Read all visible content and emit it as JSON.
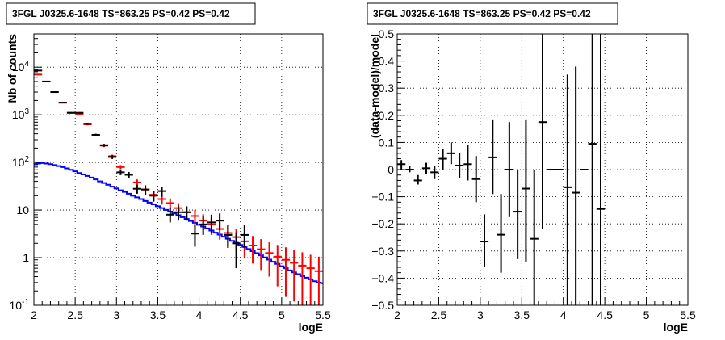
{
  "chart_data": [
    {
      "type": "line",
      "title": "3FGL J0325.6-1648 TS=863.25 PS=0.42 PS=0.42",
      "xlabel": "logE",
      "ylabel": "Nb of counts",
      "xlim": [
        2,
        5.5
      ],
      "ylim": [
        0.1,
        50000
      ],
      "ylog": true,
      "grid": true,
      "x_ticks": [
        "2",
        "2.5",
        "3",
        "3.5",
        "4",
        "4.5",
        "5",
        "5.5"
      ],
      "y_ticks": [
        "10^-1",
        "1",
        "10",
        "10^2",
        "10^3",
        "10^4"
      ],
      "colors": {
        "data": "#000000",
        "total_model": "#ff0000",
        "source_model": "#0000ff"
      },
      "series": [
        {
          "key": "data",
          "x": [
            2.05,
            2.15,
            2.25,
            2.35,
            2.45,
            2.55,
            2.65,
            2.75,
            2.85,
            2.95,
            3.05,
            3.15,
            3.25,
            3.35,
            3.45,
            3.55,
            3.65,
            3.75,
            3.85,
            3.95,
            4.05,
            4.15,
            4.25,
            4.35,
            4.45,
            4.55
          ],
          "y": [
            8500,
            5000,
            3000,
            1800,
            1100,
            1100,
            650,
            380,
            230,
            130,
            62,
            55,
            28,
            27,
            20,
            25,
            8,
            9,
            9,
            3.2,
            5,
            5.5,
            6,
            3,
            2,
            3
          ],
          "ylo": [
            8300,
            4850,
            2900,
            1760,
            1070,
            1060,
            620,
            360,
            215,
            118,
            54,
            47,
            22,
            21,
            15,
            19,
            5.5,
            6,
            6,
            1.7,
            3,
            3.3,
            3.8,
            1.6,
            0.6,
            1.6
          ],
          "yhi": [
            8700,
            5150,
            3100,
            1840,
            1130,
            1140,
            680,
            400,
            245,
            142,
            70,
            63,
            34,
            33,
            25,
            31,
            11,
            12,
            12,
            5,
            7.5,
            8,
            8.5,
            4.8,
            3.4,
            4.8
          ]
        },
        {
          "key": "total_model",
          "x": [
            2.05,
            2.15,
            2.25,
            2.35,
            2.45,
            2.55,
            2.65,
            2.75,
            2.85,
            2.95,
            3.05,
            3.15,
            3.25,
            3.35,
            3.45,
            3.55,
            3.65,
            3.75,
            3.85,
            3.95,
            4.05,
            4.15,
            4.25,
            4.35,
            4.45,
            4.55,
            4.65,
            4.75,
            4.85,
            4.95,
            5.05,
            5.15,
            5.25,
            5.35,
            5.45
          ],
          "y": [
            7000,
            5000,
            3000,
            1800,
            1100,
            1050,
            630,
            370,
            225,
            135,
            80,
            55,
            38,
            27,
            21,
            17,
            14,
            11,
            9,
            7.5,
            6,
            5,
            4,
            3.3,
            2.7,
            2.2,
            1.8,
            1.5,
            1.25,
            1.05,
            0.9,
            0.78,
            0.68,
            0.6,
            0.52
          ],
          "ylo": [
            6800,
            4850,
            2900,
            1750,
            1060,
            1010,
            600,
            350,
            210,
            125,
            72,
            48,
            32,
            22,
            16.5,
            13,
            10.5,
            8,
            6.2,
            5,
            3.8,
            3,
            2.4,
            1.8,
            1.4,
            1,
            0.75,
            0.55,
            0.4,
            0.25,
            0.15,
            0.12,
            0.1,
            0.1,
            0.1
          ],
          "yhi": [
            7200,
            5150,
            3100,
            1850,
            1140,
            1090,
            660,
            390,
            240,
            145,
            88,
            62,
            44,
            32,
            25.5,
            21,
            17.5,
            14,
            11.8,
            10,
            8.2,
            7,
            5.6,
            4.8,
            4,
            3.4,
            2.85,
            2.45,
            2.1,
            1.85,
            1.65,
            1.45,
            1.3,
            1.15,
            1.05
          ]
        },
        {
          "key": "source_model",
          "x": [
            2.0,
            2.05,
            2.1,
            2.15,
            2.2,
            2.25,
            2.3,
            2.35,
            2.4,
            2.45,
            2.5,
            2.55,
            2.6,
            2.65,
            2.7,
            2.75,
            2.8,
            2.85,
            2.9,
            2.95,
            3.0,
            3.05,
            3.1,
            3.15,
            3.2,
            3.25,
            3.3,
            3.35,
            3.4,
            3.45,
            3.5,
            3.55,
            3.6,
            3.65,
            3.7,
            3.75,
            3.8,
            3.85,
            3.9,
            3.95,
            4.0,
            4.05,
            4.1,
            4.15,
            4.2,
            4.25,
            4.3,
            4.35,
            4.4,
            4.45,
            4.5,
            4.55,
            4.6,
            4.65,
            4.7,
            4.75,
            4.8,
            4.85,
            4.9,
            4.95,
            5.0,
            5.05,
            5.1,
            5.15,
            5.2,
            5.25,
            5.3,
            5.35,
            5.4,
            5.45,
            5.5
          ],
          "y": [
            92,
            95,
            97,
            95,
            92,
            88,
            84,
            80,
            75,
            70,
            65,
            60,
            56,
            52,
            48,
            44,
            40,
            37,
            34,
            31,
            28.5,
            26,
            24,
            22,
            20,
            18.5,
            17,
            15.5,
            14.3,
            13.2,
            12,
            11,
            10.1,
            9.3,
            8.5,
            7.8,
            7.1,
            6.5,
            5.9,
            5.4,
            4.9,
            4.5,
            4.1,
            3.7,
            3.35,
            3.05,
            2.75,
            2.5,
            2.25,
            2.05,
            1.85,
            1.68,
            1.52,
            1.37,
            1.24,
            1.12,
            1.01,
            0.91,
            0.82,
            0.74,
            0.66,
            0.6,
            0.54,
            0.49,
            0.45,
            0.41,
            0.38,
            0.35,
            0.32,
            0.3,
            0.29
          ]
        }
      ]
    },
    {
      "type": "scatter",
      "title": "3FGL J0325.6-1648 TS=863.25 PS=0.42 PS=0.42",
      "xlabel": "logE",
      "ylabel": "(data-model)/model",
      "xlim": [
        2,
        5.5
      ],
      "ylim": [
        -0.5,
        0.5
      ],
      "grid": true,
      "x_ticks": [
        "2",
        "2.5",
        "3",
        "3.5",
        "4",
        "4.5",
        "5",
        "5.5"
      ],
      "y_ticks": [
        "−0.5",
        "−0.4",
        "−0.3",
        "−0.2",
        "−0.1",
        "0",
        "0.1",
        "0.2",
        "0.3",
        "0.4",
        "0.5"
      ],
      "colors": {
        "residual": "#000000"
      },
      "series": [
        {
          "key": "residual",
          "x": [
            2.05,
            2.15,
            2.25,
            2.35,
            2.45,
            2.55,
            2.65,
            2.75,
            2.85,
            2.95,
            3.05,
            3.15,
            3.25,
            3.35,
            3.45,
            3.55,
            3.65,
            3.75,
            3.85,
            3.95,
            4.05,
            4.15,
            4.25,
            4.35,
            4.45
          ],
          "y": [
            0.02,
            0.0,
            -0.04,
            0.005,
            -0.01,
            0.04,
            0.06,
            0.015,
            0.02,
            -0.035,
            -0.265,
            0.045,
            -0.24,
            0.0,
            -0.155,
            -0.07,
            -0.255,
            0.175,
            0.0,
            0.0,
            -0.065,
            -0.085,
            0.0,
            0.095,
            -0.145
          ],
          "ylo": [
            0.0,
            -0.01,
            -0.055,
            -0.015,
            -0.035,
            0.0,
            0.02,
            -0.03,
            -0.04,
            -0.12,
            -0.36,
            -0.09,
            -0.38,
            -0.175,
            -0.33,
            -0.34,
            -0.5,
            -0.22,
            null,
            null,
            -0.5,
            -0.5,
            null,
            -0.5,
            -0.5
          ],
          "yhi": [
            0.035,
            0.015,
            -0.02,
            0.025,
            0.015,
            0.075,
            0.1,
            0.06,
            0.09,
            0.05,
            -0.165,
            0.185,
            -0.09,
            0.175,
            0.0,
            0.185,
            0.0,
            0.5,
            null,
            null,
            0.35,
            0.38,
            null,
            0.5,
            0.5
          ]
        }
      ]
    }
  ]
}
